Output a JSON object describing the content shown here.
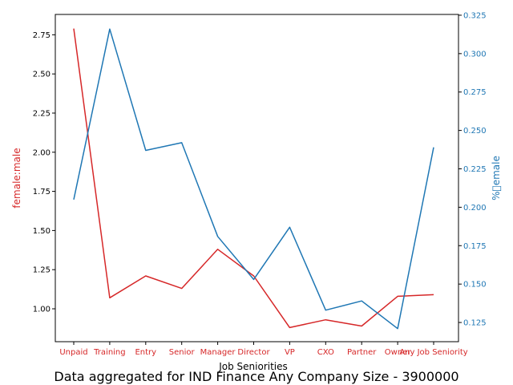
{
  "chart_data": {
    "type": "line",
    "title": "Data aggregated for IND Finance Any Company Size - 3900000",
    "xlabel": "Job Seniorities",
    "ylabel_left": "female:male",
    "ylabel_right": "%\u0000emale",
    "categories": [
      "Unpaid",
      "Training",
      "Entry",
      "Senior",
      "Manager",
      "Director",
      "VP",
      "CXO",
      "Partner",
      "Owner",
      "Any Job Seniority"
    ],
    "series": [
      {
        "name": "female:male",
        "axis": "left",
        "color": "#d62728",
        "values": [
          2.79,
          1.07,
          1.21,
          1.13,
          1.38,
          1.21,
          0.88,
          0.93,
          0.89,
          1.08,
          1.09
        ]
      },
      {
        "name": "%\u0000emale",
        "axis": "right",
        "color": "#1f77b4",
        "values": [
          0.205,
          0.316,
          0.237,
          0.242,
          0.181,
          0.153,
          0.187,
          0.133,
          0.139,
          0.121,
          0.239
        ]
      }
    ],
    "ylim_left": [
      0.79,
      2.88
    ],
    "ylim_right": [
      0.1125,
      0.3255
    ],
    "yticks_left": [
      "1.00",
      "1.25",
      "1.50",
      "1.75",
      "2.00",
      "2.25",
      "2.50",
      "2.75"
    ],
    "yticks_right": [
      "0.125",
      "0.150",
      "0.175",
      "0.200",
      "0.225",
      "0.250",
      "0.275",
      "0.300",
      "0.325"
    ],
    "grid": false,
    "legend": "none"
  }
}
